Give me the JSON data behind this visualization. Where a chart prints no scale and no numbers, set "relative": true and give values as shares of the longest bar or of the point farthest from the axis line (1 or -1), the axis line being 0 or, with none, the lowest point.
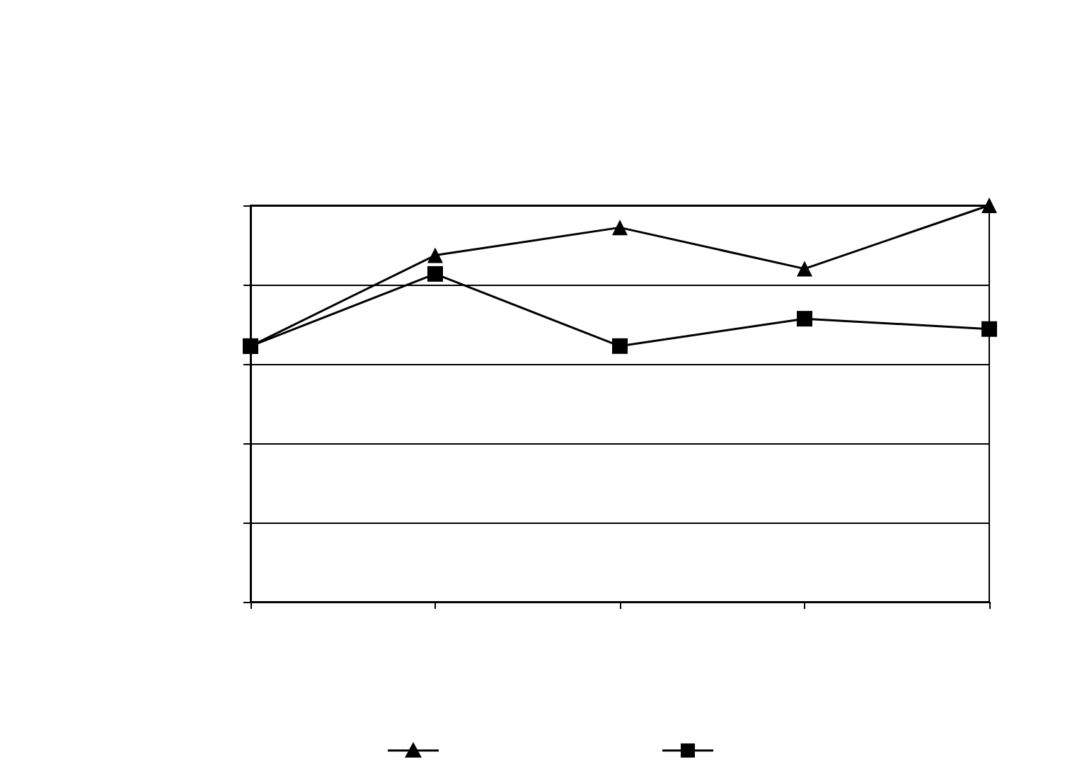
{
  "chart_data": {
    "type": "line",
    "relative": true,
    "categories": [
      null,
      null,
      null,
      null,
      null
    ],
    "series": [
      {
        "color": "#000000",
        "marker": "triangle",
        "values": [
          0.645,
          0.874,
          0.944,
          0.84,
          1
        ]
      },
      {
        "color": "#000000",
        "marker": "square",
        "values": [
          0.645,
          0.827,
          0.645,
          0.714,
          0.688
        ]
      }
    ],
    "grid": "y",
    "line_style": "solid"
  }
}
